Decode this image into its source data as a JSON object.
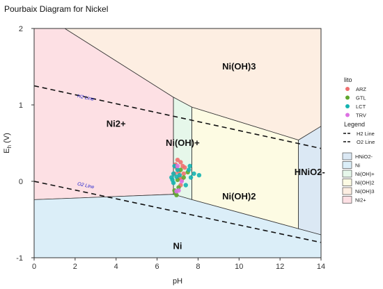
{
  "chart_data": {
    "type": "scatter",
    "title": "Pourbaix Diagram for Nickel",
    "xlabel": "pH",
    "ylabel_main": "E",
    "ylabel_sub": "h",
    "ylabel_unit": " (V)",
    "xlim": [
      0,
      14
    ],
    "ylim": [
      -1,
      2
    ],
    "xticks": [
      0,
      2,
      4,
      6,
      8,
      10,
      12,
      14
    ],
    "yticks": [
      -1,
      0,
      1,
      2
    ],
    "grid": false,
    "regions": [
      {
        "name": "Ni2+",
        "color": "#fde0e4",
        "polygon": [
          [
            0,
            2
          ],
          [
            1.5,
            2
          ],
          [
            6.8,
            1.1
          ],
          [
            6.8,
            -0.17
          ],
          [
            0,
            -0.24
          ]
        ],
        "label_at": [
          4,
          0.75
        ]
      },
      {
        "name": "Ni(OH)3",
        "color": "#fdeee2",
        "polygon": [
          [
            1.5,
            2
          ],
          [
            14,
            2
          ],
          [
            14,
            0.72
          ],
          [
            12.9,
            0.54
          ],
          [
            7.7,
            0.97
          ],
          [
            6.8,
            1.1
          ]
        ],
        "label_at": [
          10,
          1.5
        ]
      },
      {
        "name": "Ni(OH)+",
        "color": "#e6f7ea",
        "polygon": [
          [
            6.8,
            1.1
          ],
          [
            7.7,
            0.97
          ],
          [
            7.7,
            -0.24
          ],
          [
            6.8,
            -0.17
          ]
        ],
        "label_at": [
          7.25,
          0.5
        ]
      },
      {
        "name": "Ni(OH)2",
        "color": "#fdfbe3",
        "polygon": [
          [
            7.7,
            0.97
          ],
          [
            12.9,
            0.54
          ],
          [
            12.9,
            -0.62
          ],
          [
            7.7,
            -0.24
          ]
        ],
        "label_at": [
          10,
          -0.2
        ]
      },
      {
        "name": "HNiO2-",
        "color": "#dbe8f4",
        "polygon": [
          [
            12.9,
            0.54
          ],
          [
            14,
            0.72
          ],
          [
            14,
            -0.7
          ],
          [
            12.9,
            -0.62
          ]
        ],
        "label_at": [
          13.45,
          0.12
        ]
      },
      {
        "name": "Ni",
        "color": "#dbeef8",
        "polygon": [
          [
            0,
            -0.24
          ],
          [
            6.8,
            -0.17
          ],
          [
            7.7,
            -0.24
          ],
          [
            12.9,
            -0.62
          ],
          [
            14,
            -0.7
          ],
          [
            14,
            -1
          ],
          [
            0,
            -1
          ]
        ],
        "label_at": [
          7,
          -0.85
        ]
      }
    ],
    "lines": [
      {
        "name": "H2 Line",
        "label": "H2 Line",
        "points": [
          [
            0,
            1.25
          ],
          [
            14,
            0.43
          ]
        ],
        "label_at": [
          2.1,
          1.1
        ]
      },
      {
        "name": "O2 Line",
        "label": "O2 Line",
        "points": [
          [
            0,
            0.0
          ],
          [
            14,
            -0.8
          ]
        ],
        "label_at": [
          2.1,
          -0.05
        ]
      }
    ],
    "series": [
      {
        "name": "ARZ",
        "color": "#ef6f6f",
        "points": [
          [
            6.95,
            0.18
          ],
          [
            7.05,
            0.12
          ],
          [
            7.15,
            0.25
          ],
          [
            7.25,
            0.2
          ],
          [
            7.1,
            0.05
          ],
          [
            7.3,
            0.1
          ],
          [
            6.9,
            0.22
          ],
          [
            7.2,
            0.02
          ],
          [
            7.35,
            0.18
          ],
          [
            7.0,
            0.28
          ],
          [
            7.15,
            -0.05
          ],
          [
            6.85,
            0.1
          ]
        ]
      },
      {
        "name": "GTL",
        "color": "#5fa62d",
        "points": [
          [
            6.9,
            -0.15
          ],
          [
            6.95,
            -0.18
          ],
          [
            7.0,
            0.02
          ],
          [
            7.05,
            -0.08
          ],
          [
            7.3,
            0.05
          ],
          [
            7.5,
            0.12
          ],
          [
            6.85,
            -0.12
          ],
          [
            7.15,
            0.15
          ]
        ]
      },
      {
        "name": "LCT",
        "color": "#15b3b0",
        "points": [
          [
            6.75,
            0.02
          ],
          [
            6.8,
            0.1
          ],
          [
            6.85,
            0.2
          ],
          [
            6.7,
            0.05
          ],
          [
            7.55,
            0.15
          ],
          [
            7.8,
            0.1
          ],
          [
            8.05,
            0.08
          ],
          [
            7.6,
            0.2
          ],
          [
            6.95,
            0.06
          ],
          [
            7.1,
            0.08
          ],
          [
            7.4,
            -0.05
          ],
          [
            7.65,
            0.05
          ],
          [
            6.8,
            -0.02
          ],
          [
            7.0,
            0.15
          ]
        ]
      },
      {
        "name": "TRV",
        "color": "#dd72e3",
        "points": [
          [
            6.95,
            -0.13
          ],
          [
            7.05,
            -0.12
          ],
          [
            7.2,
            0.0
          ],
          [
            7.0,
            0.2
          ]
        ]
      }
    ],
    "legend": {
      "placement": "right",
      "title": "lito",
      "line_title": "Legend",
      "line_items": [
        "H2 Line",
        "O2 Line"
      ],
      "region_items": [
        "HNiO2-",
        "Ni",
        "Ni(OH)+",
        "Ni(OH)2",
        "Ni(OH)3",
        "Ni2+"
      ]
    }
  }
}
